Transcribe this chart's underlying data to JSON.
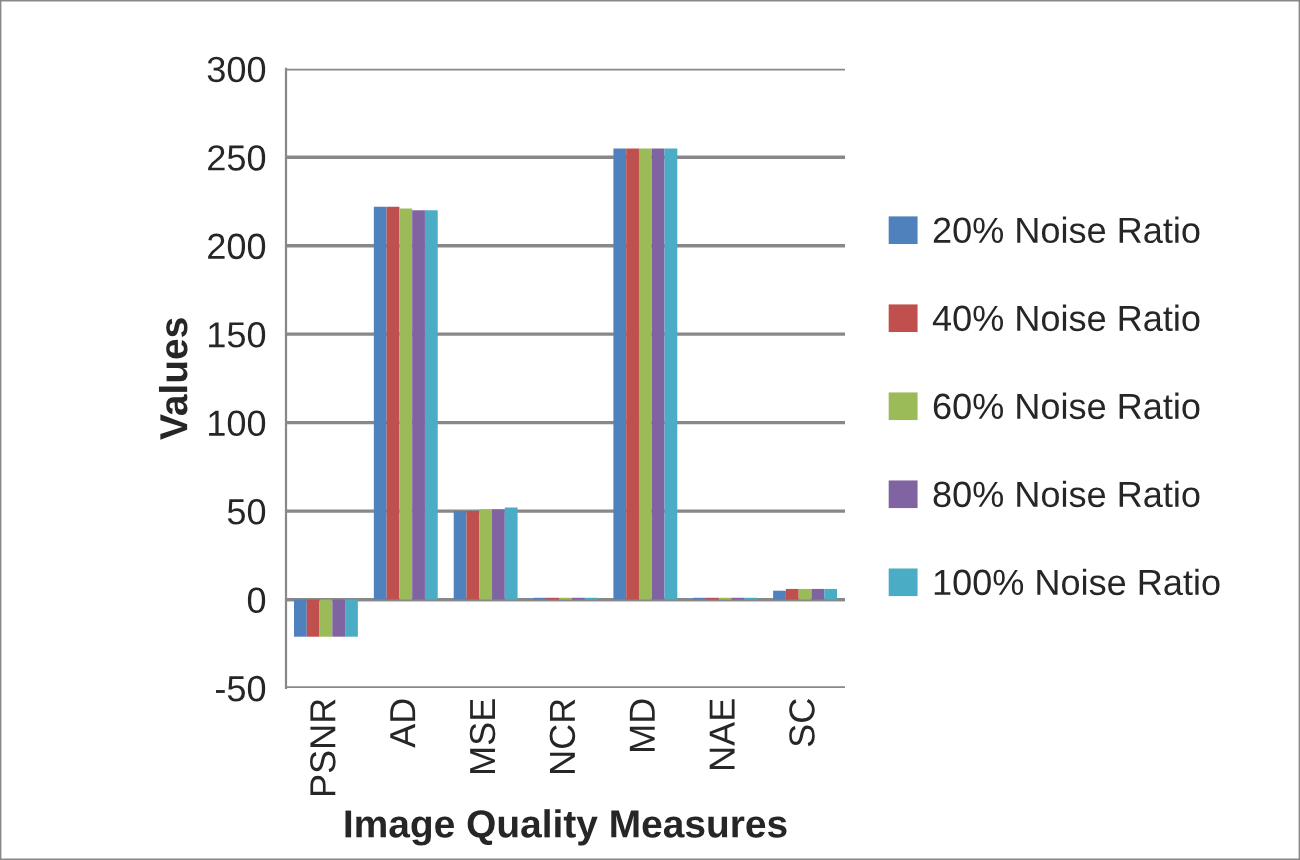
{
  "chart_data": {
    "type": "bar",
    "xlabel": "Image Quality Measures",
    "ylabel": "Values",
    "categories": [
      "PSNR",
      "AD",
      "MSE",
      "NCR",
      "MD",
      "NAE",
      "SC"
    ],
    "series": [
      {
        "name": "20% Noise Ratio",
        "color": "#4f81bd",
        "values": [
          -21,
          222,
          50,
          1,
          255,
          1,
          5
        ]
      },
      {
        "name": "40% Noise Ratio",
        "color": "#c0504d",
        "values": [
          -21,
          222,
          50,
          1,
          255,
          1,
          6
        ]
      },
      {
        "name": "60% Noise Ratio",
        "color": "#9bbb59",
        "values": [
          -21,
          221,
          51,
          1,
          255,
          1,
          6
        ]
      },
      {
        "name": "80% Noise Ratio",
        "color": "#8064a2",
        "values": [
          -21,
          220,
          51,
          1,
          255,
          1,
          6
        ]
      },
      {
        "name": "100% Noise Ratio",
        "color": "#4bacc6",
        "values": [
          -21,
          220,
          52,
          1,
          255,
          1,
          6
        ]
      }
    ],
    "ylim": [
      -50,
      300
    ],
    "yticks": [
      -50,
      0,
      50,
      100,
      150,
      200,
      250,
      300
    ],
    "grid": "y",
    "legend": "right"
  }
}
